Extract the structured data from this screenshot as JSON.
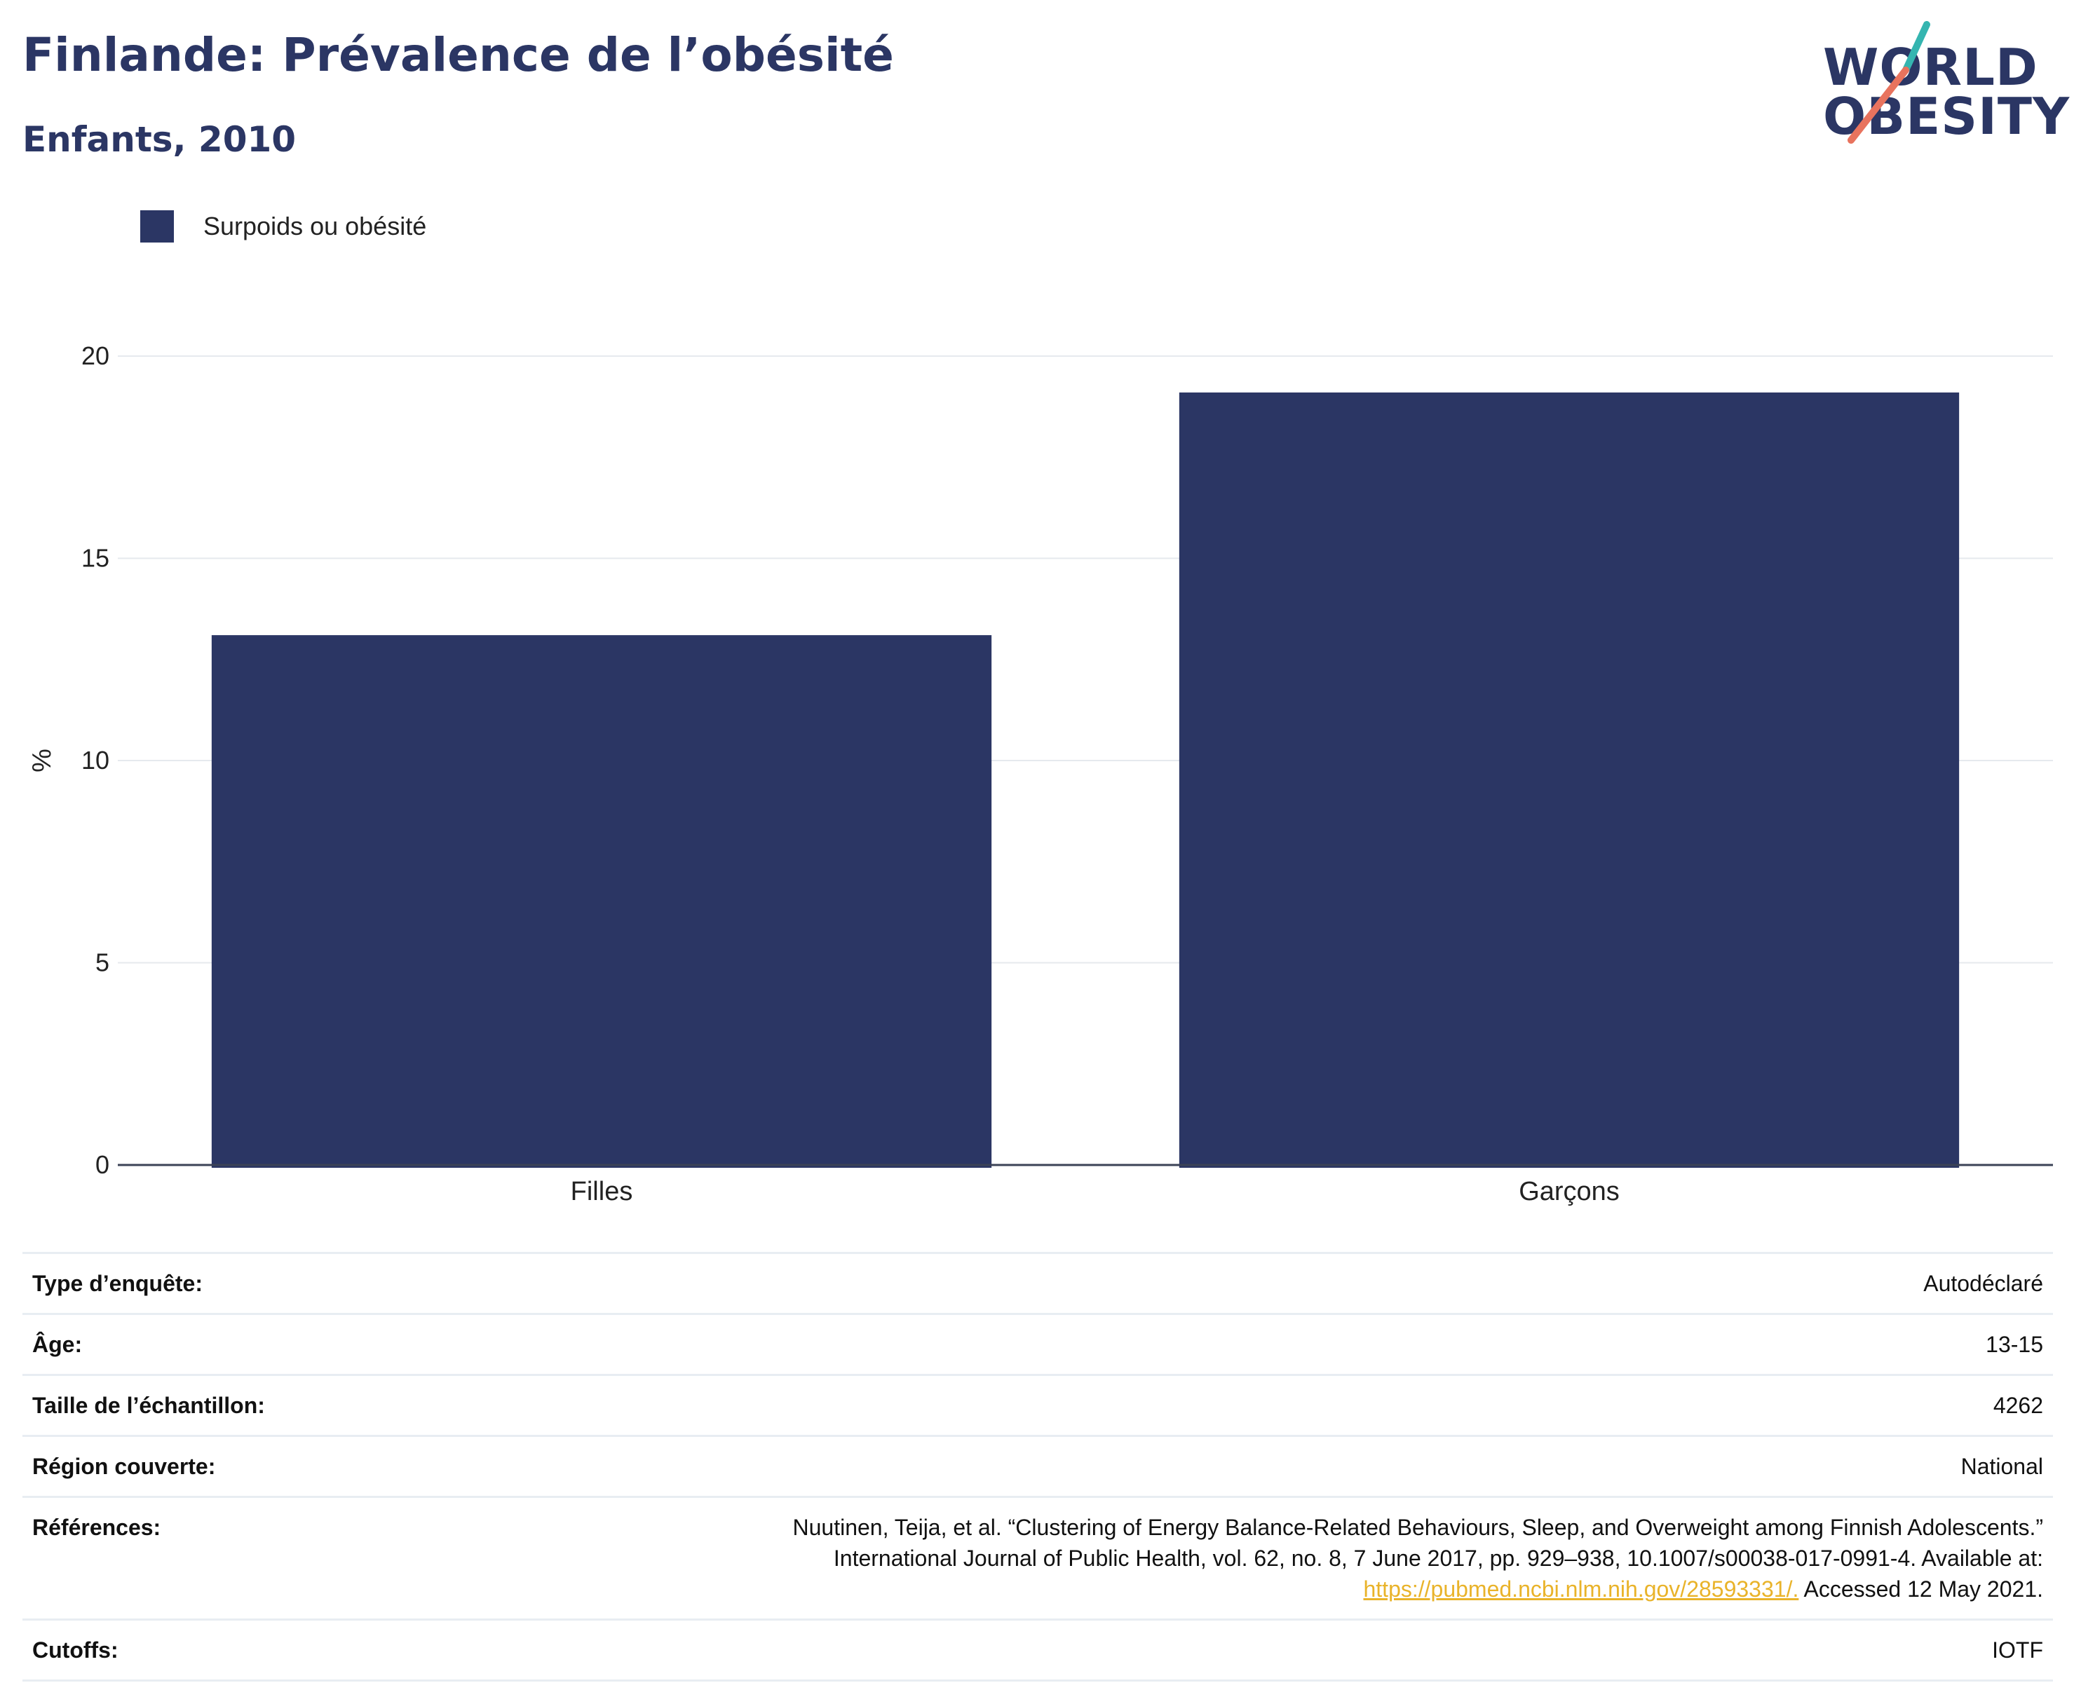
{
  "header": {
    "title": "Finlande: Prévalence de l’obésité",
    "subtitle": "Enfants, 2010"
  },
  "logo": {
    "line1": "WORLD",
    "line2": "OBESITY",
    "colors": {
      "navy": "#2b3664",
      "teal": "#35b5b0",
      "coral": "#e8735e"
    }
  },
  "chart_data": {
    "type": "bar",
    "categories": [
      "Filles",
      "Garçons"
    ],
    "series": [
      {
        "name": "Surpoids ou obésité",
        "values": [
          13.1,
          19.1
        ],
        "color": "#2b3664"
      }
    ],
    "ylabel": "%",
    "xlabel": "",
    "ylim": [
      0,
      20
    ],
    "yticks": [
      0,
      5,
      10,
      15,
      20
    ],
    "grid": true,
    "legend": "top-left"
  },
  "table": {
    "rows": [
      {
        "label": "Type d’enquête:",
        "value": "Autodéclaré"
      },
      {
        "label": "Âge:",
        "value": "13-15"
      },
      {
        "label": "Taille de l’échantillon:",
        "value": "4262"
      },
      {
        "label": "Région couverte:",
        "value": "National"
      }
    ],
    "references": {
      "label": "Références:",
      "line1": "Nuutinen, Teija, et al. “Clustering of Energy Balance-Related Behaviours, Sleep, and Overweight among Finnish Adolescents.”",
      "line2": "International Journal of Public Health, vol. 62, no. 8, 7 June 2017, pp. 929–938, 10.1007/s00038-017-0991-4. Available at:",
      "link": "https://pubmed.ncbi.nlm.nih.gov/28593331/.",
      "suffix": " Accessed 12 May 2021."
    },
    "cutoffs": {
      "label": "Cutoffs:",
      "value": "IOTF"
    }
  }
}
